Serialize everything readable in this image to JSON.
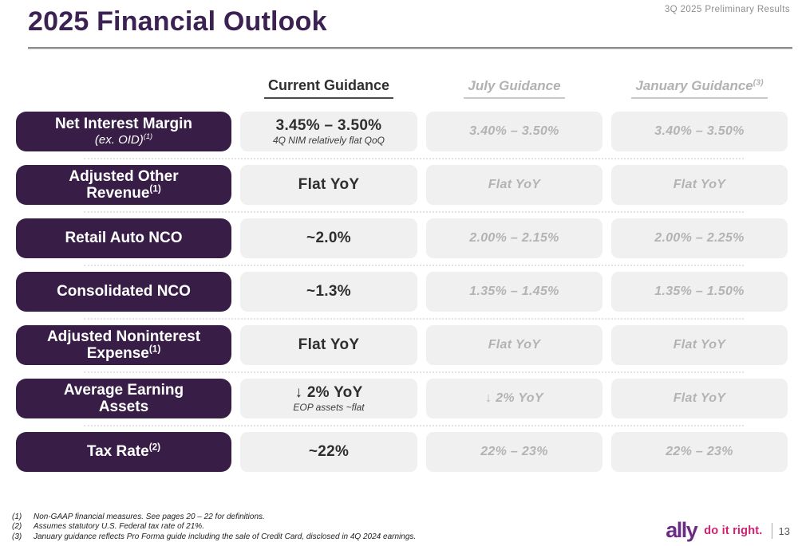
{
  "slide": {
    "title": "2025 Financial Outlook",
    "corner_note": "3Q 2025 Preliminary Results",
    "page_number": "13"
  },
  "columns": {
    "current": "Current Guidance",
    "july": "July Guidance",
    "january": "January Guidance",
    "january_sup": "(3)"
  },
  "rows": [
    {
      "label_line1": "Net Interest Margin",
      "label_line2": "(ex. OID)",
      "label_line2_sup": "(1)",
      "current": "3.45% – 3.50%",
      "current_sub": "4Q NIM relatively flat QoQ",
      "july": "3.40% – 3.50%",
      "january": "3.40% – 3.50%"
    },
    {
      "label_line1": "Adjusted Other",
      "label_line2": "Revenue",
      "label_line2_sup": "(1)",
      "current": "Flat YoY",
      "july": "Flat YoY",
      "january": "Flat YoY"
    },
    {
      "label_line1": "Retail Auto NCO",
      "current": "~2.0%",
      "july": "2.00% – 2.15%",
      "january": "2.00% – 2.25%"
    },
    {
      "label_line1": "Consolidated NCO",
      "current": "~1.3%",
      "july": "1.35% – 1.45%",
      "january": "1.35% – 1.50%"
    },
    {
      "label_line1": "Adjusted Noninterest",
      "label_line2": "Expense",
      "label_line2_sup": "(1)",
      "current": "Flat YoY",
      "july": "Flat YoY",
      "january": "Flat YoY"
    },
    {
      "label_line1": "Average Earning",
      "label_line2": "Assets",
      "current": "↓ 2% YoY",
      "current_sub": "EOP assets ~flat",
      "july": "↓ 2% YoY",
      "january": "Flat YoY"
    },
    {
      "label_line1": "Tax Rate",
      "label_line1_sup": "(2)",
      "current": "~22%",
      "july": "22% – 23%",
      "january": "22% – 23%"
    }
  ],
  "footnotes": [
    {
      "num": "(1)",
      "text": "Non-GAAP financial measures. See pages 20 – 22 for definitions."
    },
    {
      "num": "(2)",
      "text": "Assumes statutory U.S. Federal tax rate of 21%."
    },
    {
      "num": "(3)",
      "text": "January guidance reflects Pro Forma guide including the sale of Credit Card, disclosed in 4Q 2024 earnings."
    }
  ],
  "footer": {
    "logo": "ally",
    "tagline": "do it right."
  },
  "colors": {
    "title_purple": "#3c2253",
    "row_label_purple": "#381e47",
    "value_box_gray": "#f0f0f0",
    "ghost_text_gray": "#b3b3b3",
    "logo_purple": "#6b2d84",
    "tagline_magenta": "#d02070"
  }
}
